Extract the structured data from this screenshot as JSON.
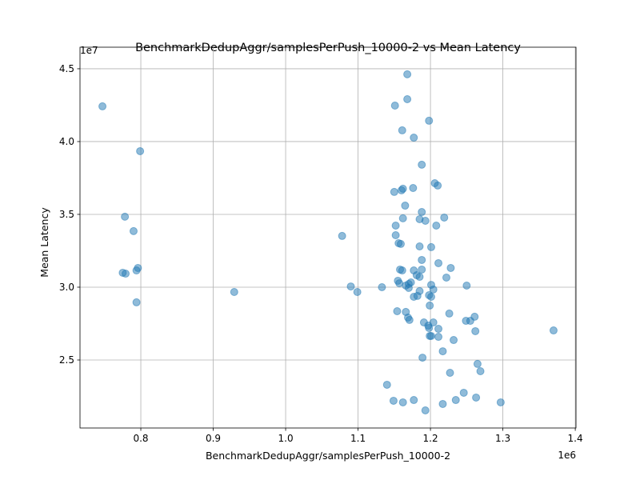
{
  "chart_data": {
    "type": "scatter",
    "title": "BenchmarkDedupAggr/samplesPerPush_10000-2 vs Mean Latency",
    "xlabel": "BenchmarkDedupAggr/samplesPerPush_10000-2",
    "ylabel": "Mean Latency",
    "x_offset_label": "1e6",
    "y_offset_label": "1e7",
    "color": "#1f77b4",
    "alpha": 0.5,
    "grid": true,
    "xlim": [
      716000,
      1401000
    ],
    "ylim": [
      20330000,
      46480000
    ],
    "xticks": [
      {
        "value": 800000,
        "label": "0.8"
      },
      {
        "value": 900000,
        "label": "0.9"
      },
      {
        "value": 1000000,
        "label": "1.0"
      },
      {
        "value": 1100000,
        "label": "1.1"
      },
      {
        "value": 1200000,
        "label": "1.2"
      },
      {
        "value": 1300000,
        "label": "1.3"
      },
      {
        "value": 1400000,
        "label": "1.4"
      }
    ],
    "yticks": [
      {
        "value": 25000000,
        "label": "2.5"
      },
      {
        "value": 30000000,
        "label": "3.0"
      },
      {
        "value": 35000000,
        "label": "3.5"
      },
      {
        "value": 40000000,
        "label": "4.0"
      },
      {
        "value": 45000000,
        "label": "4.5"
      }
    ],
    "x": [
      747000,
      799000,
      778000,
      790000,
      796000,
      794000,
      775000,
      779000,
      794000,
      929000,
      1078000,
      1090000,
      1099000,
      1133000,
      1140000,
      1149000,
      1168000,
      1168000,
      1151000,
      1198000,
      1161000,
      1177000,
      1188000,
      1206000,
      1210000,
      1176000,
      1162000,
      1160000,
      1150000,
      1165000,
      1188000,
      1219000,
      1162000,
      1185000,
      1193000,
      1152000,
      1208000,
      1152000,
      1156000,
      1159000,
      1185000,
      1201000,
      1188000,
      1211000,
      1228000,
      1158000,
      1161000,
      1177000,
      1188000,
      1181000,
      1185000,
      1222000,
      1155000,
      1157000,
      1173000,
      1170000,
      1166000,
      1201000,
      1250000,
      1170000,
      1204000,
      1185000,
      1198000,
      1201000,
      1177000,
      1182000,
      1199000,
      1154000,
      1166000,
      1226000,
      1169000,
      1171000,
      1261000,
      1249000,
      1255000,
      1191000,
      1204000,
      1197000,
      1198000,
      1211000,
      1262000,
      1370000,
      1199000,
      1201000,
      1211000,
      1232000,
      1217000,
      1189000,
      1265000,
      1269000,
      1227000,
      1246000,
      1235000,
      1263000,
      1177000,
      1162000,
      1217000,
      1297000,
      1193000
    ],
    "values": [
      42420000,
      39340000,
      34840000,
      33850000,
      31320000,
      31150000,
      30990000,
      30930000,
      28960000,
      29670000,
      33520000,
      30050000,
      29670000,
      30000000,
      23300000,
      22200000,
      44620000,
      42910000,
      42470000,
      41430000,
      40770000,
      40270000,
      38410000,
      37140000,
      36980000,
      36810000,
      36760000,
      36650000,
      36540000,
      35600000,
      35160000,
      34780000,
      34730000,
      34670000,
      34560000,
      34230000,
      34230000,
      33570000,
      33020000,
      32970000,
      32800000,
      32750000,
      31870000,
      31650000,
      31320000,
      31210000,
      31150000,
      31150000,
      31210000,
      30820000,
      30710000,
      30660000,
      30440000,
      30270000,
      30330000,
      30220000,
      30110000,
      30160000,
      30110000,
      29950000,
      29840000,
      29730000,
      29450000,
      29340000,
      29340000,
      29400000,
      28740000,
      28350000,
      28300000,
      28190000,
      27910000,
      27750000,
      27970000,
      27690000,
      27690000,
      27580000,
      27580000,
      27360000,
      27200000,
      27140000,
      26980000,
      27030000,
      26650000,
      26650000,
      26590000,
      26370000,
      25600000,
      25160000,
      24730000,
      24230000,
      24120000,
      22750000,
      22250000,
      22420000,
      22250000,
      22090000,
      21980000,
      22090000,
      21540000
    ]
  }
}
